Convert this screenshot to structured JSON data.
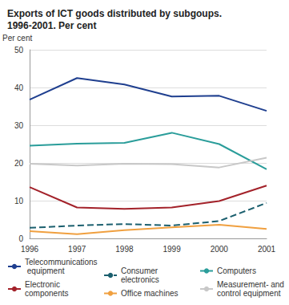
{
  "chart_data": {
    "type": "line",
    "title": "Exports of ICT goods distributed by subgoups.\n1996-2001. Per cent",
    "y_label": "Per cent",
    "categories": [
      "1996",
      "1997",
      "1998",
      "1999",
      "2000",
      "2001"
    ],
    "series": [
      {
        "name": "Telecommunications equipment",
        "color": "#1f3f8f",
        "line_style": "solid",
        "values": [
          36.8,
          42.5,
          40.8,
          37.6,
          37.8,
          33.8
        ]
      },
      {
        "name": "Consumer electronics",
        "color": "#1b5f6e",
        "line_style": "dashed",
        "values": [
          2.8,
          3.4,
          3.8,
          3.4,
          4.6,
          9.4
        ]
      },
      {
        "name": "Computers",
        "color": "#2a9d9a",
        "line_style": "solid",
        "values": [
          24.6,
          25.1,
          25.3,
          28.0,
          25.0,
          18.3
        ]
      },
      {
        "name": "Electronic components",
        "color": "#a3222a",
        "line_style": "solid",
        "values": [
          13.6,
          8.2,
          7.8,
          8.2,
          9.9,
          14.0
        ]
      },
      {
        "name": "Office machines",
        "color": "#f0a040",
        "line_style": "solid",
        "values": [
          1.9,
          1.1,
          2.2,
          2.9,
          3.6,
          2.5
        ]
      },
      {
        "name": "Measurement- and control equipment",
        "color": "#c8c8c8",
        "line_style": "solid",
        "values": [
          19.8,
          19.3,
          19.8,
          19.7,
          18.8,
          21.4
        ]
      }
    ],
    "ylim": [
      0,
      50
    ],
    "yticks": [
      0,
      10,
      20,
      30,
      40,
      50
    ],
    "grid": true,
    "legend": "bottom"
  }
}
